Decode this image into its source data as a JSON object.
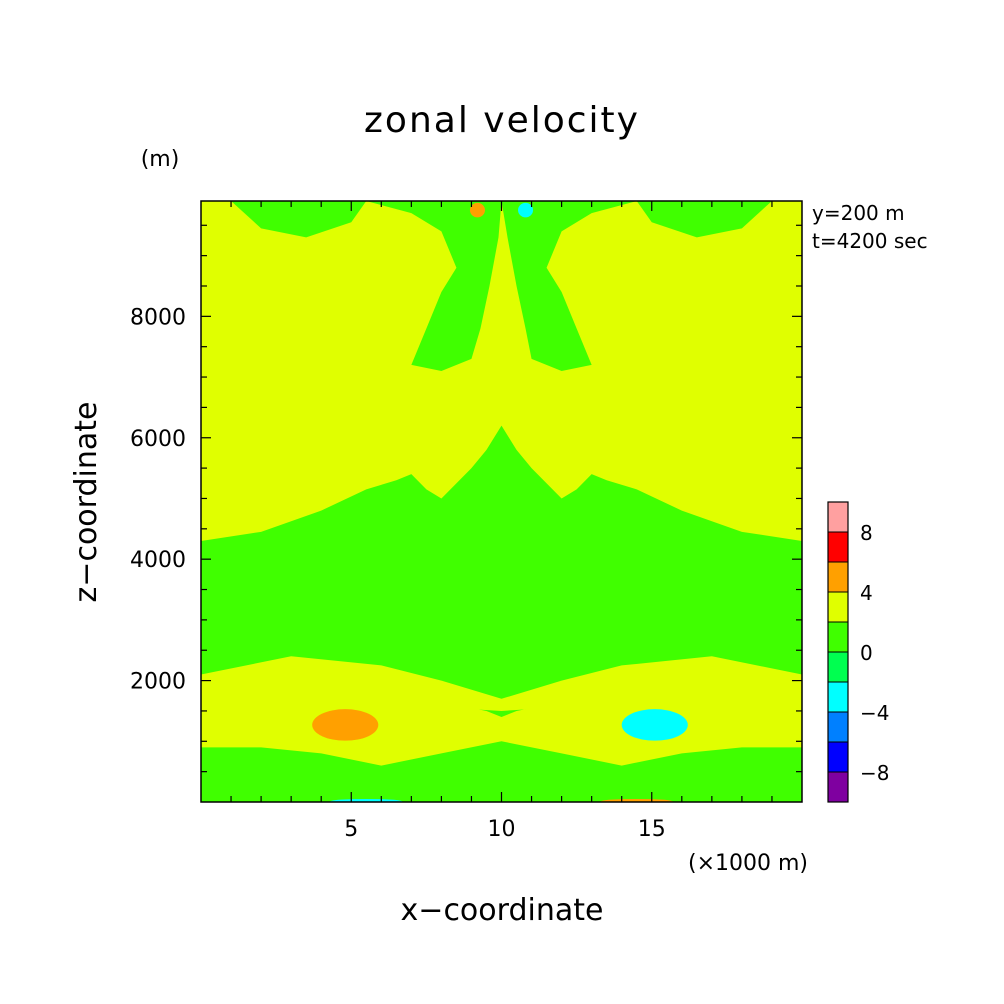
{
  "chart_data": {
    "type": "heatmap",
    "title": "zonal velocity",
    "xlabel": "x−coordinate",
    "ylabel": "z−coordinate",
    "x_unit": "(×1000 m)",
    "y_unit": "(m)",
    "annotations": [
      "y=200 m",
      "t=4200 sec"
    ],
    "xlim": [
      0,
      20
    ],
    "ylim": [
      0,
      9900
    ],
    "x_ticks": [
      5,
      10,
      15
    ],
    "y_ticks": [
      2000,
      4000,
      6000,
      8000
    ],
    "colorbar": {
      "levels": [
        -10,
        -8,
        -6,
        -4,
        -2,
        0,
        2,
        4,
        6,
        8,
        10
      ],
      "colors": [
        "#7f00a0",
        "#0000ff",
        "#0080ff",
        "#00ffff",
        "#00ff50",
        "#40ff00",
        "#e0ff00",
        "#ffa000",
        "#ff0000",
        "#ffa0a0"
      ],
      "tick_labels": [
        "−8",
        "−4",
        "0",
        "4",
        "8"
      ]
    },
    "regions": [
      {
        "shape": "rect",
        "class": 0,
        "x": [
          0,
          10
        ],
        "z": [
          0,
          9900
        ]
      },
      {
        "shape": "rect",
        "class": 0,
        "x": [
          10,
          20
        ],
        "z": [
          0,
          9900
        ]
      },
      {
        "shape": "poly",
        "class": 1,
        "points": [
          [
            0,
            4300
          ],
          [
            2,
            4450
          ],
          [
            4,
            4800
          ],
          [
            5.5,
            5150
          ],
          [
            6.5,
            5300
          ],
          [
            7,
            5400
          ],
          [
            7.5,
            5150
          ],
          [
            8,
            5000
          ],
          [
            9,
            5500
          ],
          [
            9.5,
            5800
          ],
          [
            10,
            6200
          ],
          [
            10,
            9900
          ],
          [
            0,
            9900
          ]
        ]
      },
      {
        "shape": "poly",
        "class": 1,
        "points": [
          [
            10,
            6200
          ],
          [
            10.5,
            5800
          ],
          [
            11,
            5500
          ],
          [
            12,
            5000
          ],
          [
            12.5,
            5150
          ],
          [
            13,
            5400
          ],
          [
            13.5,
            5300
          ],
          [
            14.5,
            5150
          ],
          [
            16,
            4800
          ],
          [
            18,
            4450
          ],
          [
            20,
            4300
          ],
          [
            20,
            9900
          ],
          [
            10,
            9900
          ]
        ]
      },
      {
        "shape": "poly",
        "class": 0,
        "points": [
          [
            5.5,
            9900
          ],
          [
            5,
            9550
          ],
          [
            3.5,
            9300
          ],
          [
            2,
            9450
          ],
          [
            1,
            9900
          ]
        ]
      },
      {
        "shape": "poly",
        "class": 0,
        "points": [
          [
            19,
            9900
          ],
          [
            18,
            9450
          ],
          [
            16.5,
            9300
          ],
          [
            15,
            9550
          ],
          [
            14.5,
            9900
          ]
        ]
      },
      {
        "shape": "poly",
        "class": 0,
        "points": [
          [
            5.5,
            9900
          ],
          [
            7,
            9700
          ],
          [
            8,
            9400
          ],
          [
            8.5,
            8800
          ],
          [
            8,
            8400
          ],
          [
            7.5,
            7800
          ],
          [
            7,
            7200
          ],
          [
            8,
            7100
          ],
          [
            9,
            7300
          ],
          [
            9.3,
            7800
          ],
          [
            9.6,
            8500
          ],
          [
            9.9,
            9300
          ],
          [
            10,
            9900
          ]
        ]
      },
      {
        "shape": "poly",
        "class": 0,
        "points": [
          [
            10,
            9900
          ],
          [
            10.2,
            9300
          ],
          [
            10.5,
            8500
          ],
          [
            10.8,
            7800
          ],
          [
            11,
            7300
          ],
          [
            12,
            7100
          ],
          [
            13,
            7200
          ],
          [
            12.5,
            7800
          ],
          [
            12,
            8400
          ],
          [
            11.5,
            8800
          ],
          [
            12,
            9400
          ],
          [
            13,
            9700
          ],
          [
            14.5,
            9900
          ]
        ]
      },
      {
        "shape": "rect",
        "class": 0,
        "x": [
          0,
          20
        ],
        "z": [
          0,
          1600
        ]
      },
      {
        "shape": "poly",
        "class": 1,
        "points": [
          [
            0,
            1800
          ],
          [
            2,
            1950
          ],
          [
            4,
            1850
          ],
          [
            6,
            1700
          ],
          [
            8,
            1650
          ],
          [
            9.5,
            1500
          ],
          [
            10,
            1400
          ],
          [
            10,
            1000
          ],
          [
            8,
            800
          ],
          [
            6,
            600
          ],
          [
            4,
            800
          ],
          [
            2,
            900
          ],
          [
            0,
            900
          ]
        ]
      },
      {
        "shape": "poly",
        "class": 1,
        "points": [
          [
            10,
            1400
          ],
          [
            10.5,
            1500
          ],
          [
            12,
            1650
          ],
          [
            14,
            1700
          ],
          [
            16,
            1850
          ],
          [
            18,
            1950
          ],
          [
            20,
            1800
          ],
          [
            20,
            900
          ],
          [
            18,
            900
          ],
          [
            16,
            800
          ],
          [
            14,
            600
          ],
          [
            12,
            800
          ],
          [
            10,
            1000
          ]
        ]
      },
      {
        "shape": "poly",
        "class": 1,
        "points": [
          [
            0,
            2100
          ],
          [
            3,
            2400
          ],
          [
            6,
            2250
          ],
          [
            8,
            2000
          ],
          [
            10,
            1700
          ],
          [
            10,
            1500
          ],
          [
            0,
            1800
          ]
        ]
      },
      {
        "shape": "poly",
        "class": 1,
        "points": [
          [
            10,
            1700
          ],
          [
            12,
            2000
          ],
          [
            14,
            2250
          ],
          [
            17,
            2400
          ],
          [
            20,
            2100
          ],
          [
            20,
            1800
          ],
          [
            10,
            1500
          ]
        ]
      },
      {
        "shape": "ellipse",
        "class": 2,
        "cx": 4.8,
        "cz": 1270,
        "rx": 1.1,
        "rz": 260
      },
      {
        "shape": "ellipse",
        "class": -2,
        "cx": 15.1,
        "cz": 1270,
        "rx": 1.1,
        "rz": 260
      },
      {
        "shape": "ellipse",
        "class": 2,
        "cx": 9.2,
        "cz": 9750,
        "rx": 0.25,
        "rz": 120
      },
      {
        "shape": "ellipse",
        "class": -2,
        "cx": 10.8,
        "cz": 9750,
        "rx": 0.25,
        "rz": 120
      },
      {
        "shape": "ellipse",
        "class": -2,
        "cx": 5.5,
        "cz": 10,
        "rx": 1.2,
        "rz": 40
      },
      {
        "shape": "ellipse",
        "class": 2,
        "cx": 14.5,
        "cz": 10,
        "rx": 1.2,
        "rz": 40
      }
    ]
  }
}
